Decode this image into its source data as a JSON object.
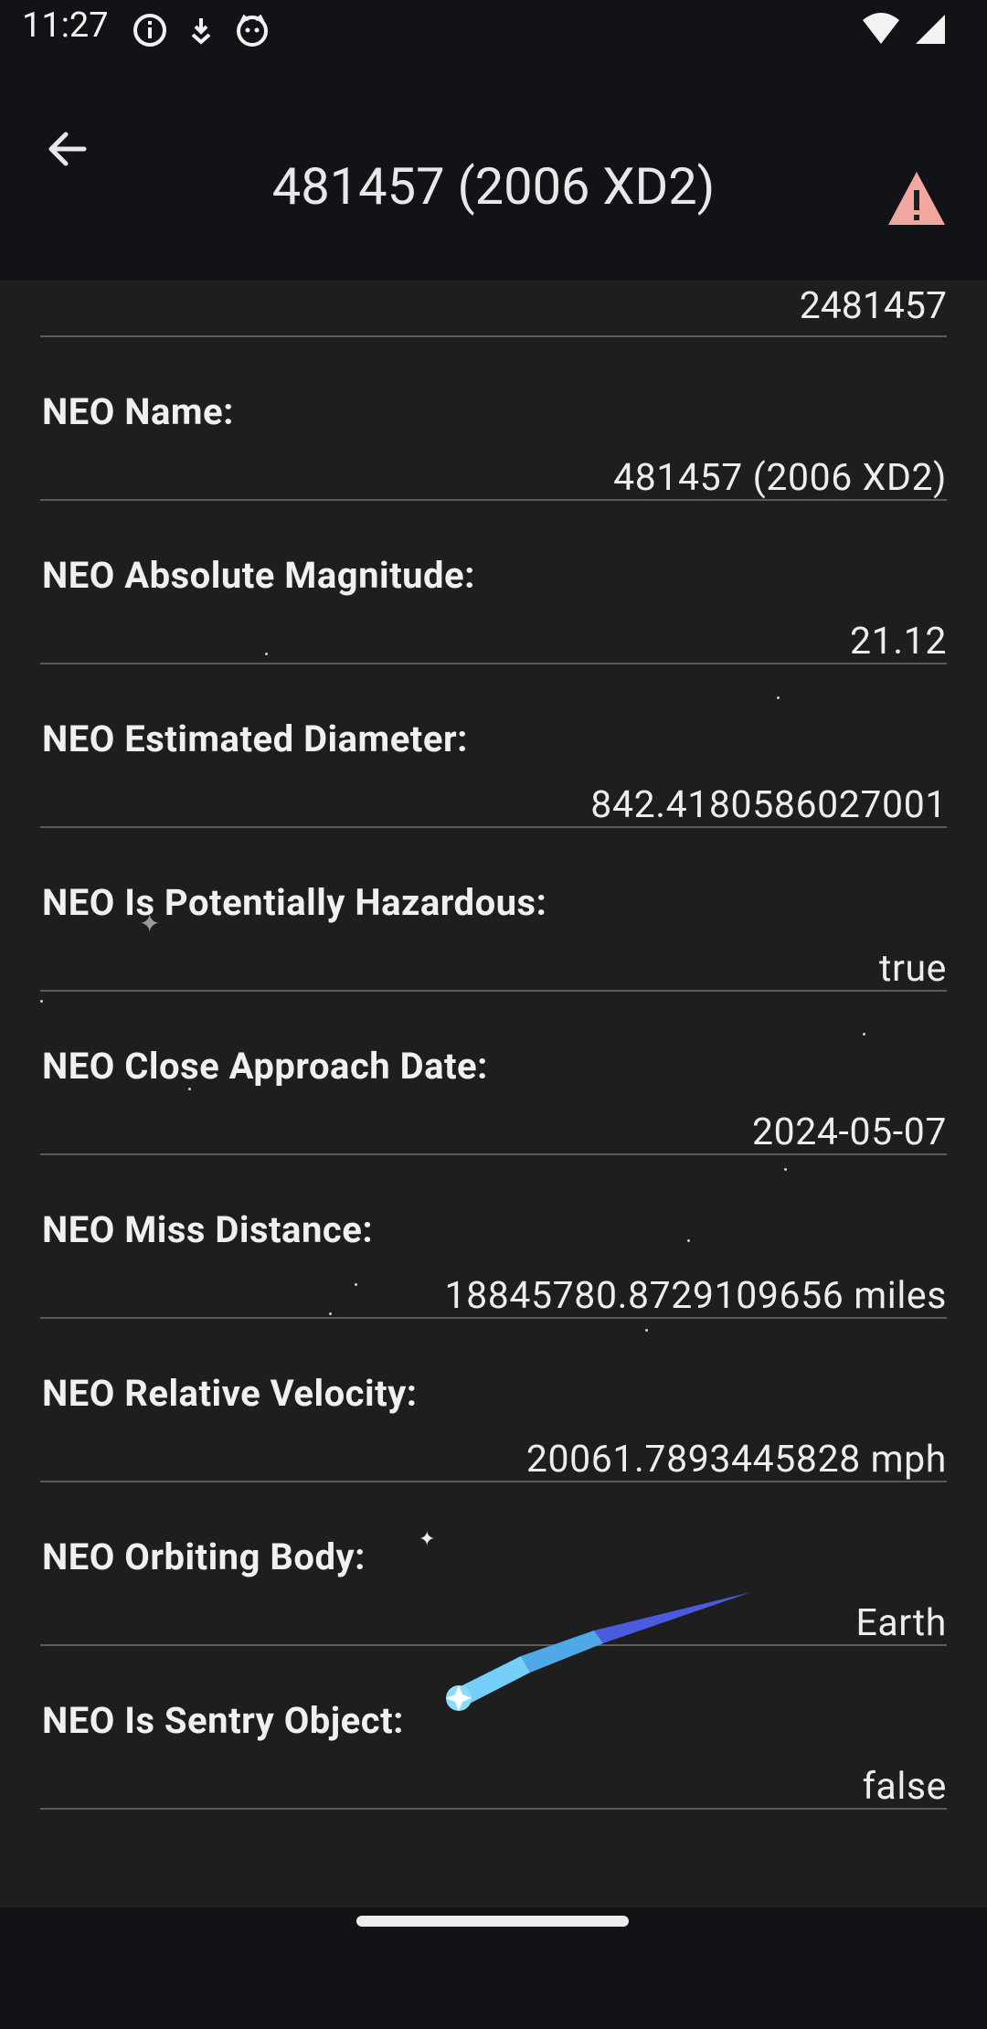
{
  "status_bar": {
    "time": "11:27"
  },
  "app_bar": {
    "title": "481457 (2006 XD2)",
    "back_icon": "arrow-back-icon",
    "warning_icon": "warning-icon",
    "warning_color": "#F2A6A0"
  },
  "top_value": "2481457",
  "fields": [
    {
      "label": "NEO Name:",
      "value": "481457 (2006 XD2)"
    },
    {
      "label": "NEO Absolute Magnitude:",
      "value": "21.12"
    },
    {
      "label": "NEO Estimated Diameter:",
      "value": "842.4180586027001"
    },
    {
      "label": "NEO Is Potentially Hazardous:",
      "value": "true"
    },
    {
      "label": "NEO Close Approach Date:",
      "value": "2024-05-07"
    },
    {
      "label": "NEO Miss Distance:",
      "value": "18845780.8729109656 miles"
    },
    {
      "label": "NEO Relative Velocity:",
      "value": "20061.7893445828 mph"
    },
    {
      "label": "NEO Orbiting Body:",
      "value": "Earth"
    },
    {
      "label": "NEO Is Sentry Object:",
      "value": "false"
    }
  ],
  "colors": {
    "background": "#121316",
    "surface": "#1E1E1E",
    "divider": "#5A5A5E",
    "comet_blue": "#4A5BE0",
    "comet_light": "#74D0F8"
  }
}
